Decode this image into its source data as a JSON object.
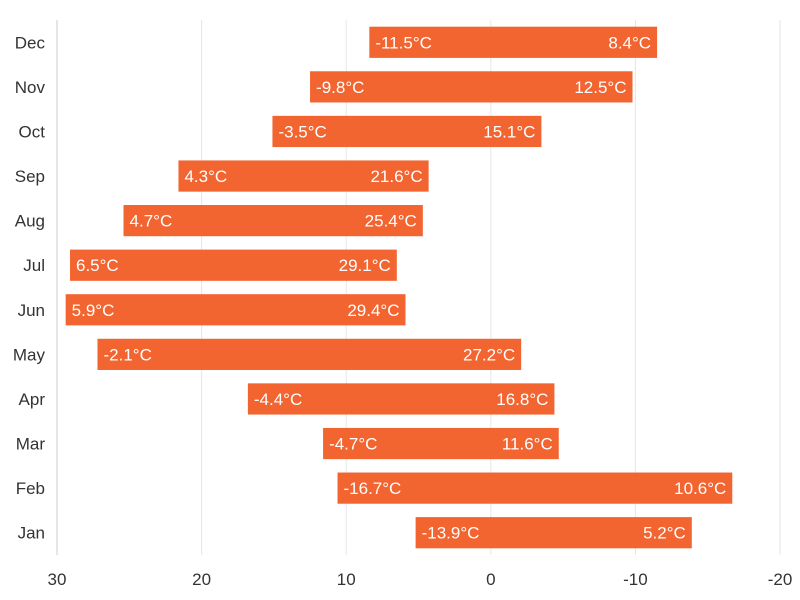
{
  "chart_data": {
    "type": "bar",
    "orientation": "horizontal",
    "subtype": "range",
    "categories": [
      "Jan",
      "Feb",
      "Mar",
      "Apr",
      "May",
      "Jun",
      "Jul",
      "Aug",
      "Sep",
      "Oct",
      "Nov",
      "Dec"
    ],
    "series": [
      {
        "low": [
          -13.9,
          -16.7,
          -4.7,
          -4.4,
          -2.1,
          5.9,
          6.5,
          4.7,
          4.3,
          -3.5,
          -9.8,
          -11.5
        ],
        "high": [
          5.2,
          10.6,
          11.6,
          16.8,
          27.2,
          29.4,
          29.1,
          25.4,
          21.6,
          15.1,
          12.5,
          8.4
        ],
        "low_labels": [
          "-13.9°C",
          "-16.7°C",
          "-4.7°C",
          "-4.4°C",
          "-2.1°C",
          "5.9°C",
          "6.5°C",
          "4.7°C",
          "4.3°C",
          "-3.5°C",
          "-9.8°C",
          "-11.5°C"
        ],
        "high_labels": [
          "5.2°C",
          "10.6°C",
          "11.6°C",
          "16.8°C",
          "27.2°C",
          "29.4°C",
          "29.1°C",
          "25.4°C",
          "21.6°C",
          "15.1°C",
          "12.5°C",
          "8.4°C"
        ]
      }
    ],
    "value_axis": {
      "min": -20,
      "max": 30,
      "reversed": true,
      "ticks": [
        30,
        20,
        10,
        0,
        -10,
        -20
      ],
      "tick_labels": [
        "30",
        "20",
        "10",
        "0",
        "-10",
        "-20"
      ]
    },
    "grid": true,
    "legend": "none",
    "colors": {
      "bar": "#f26430",
      "grid": "#e6e6e6",
      "axis": "#cccccc",
      "text": "#333333",
      "bar_text": "#ffffff"
    }
  }
}
